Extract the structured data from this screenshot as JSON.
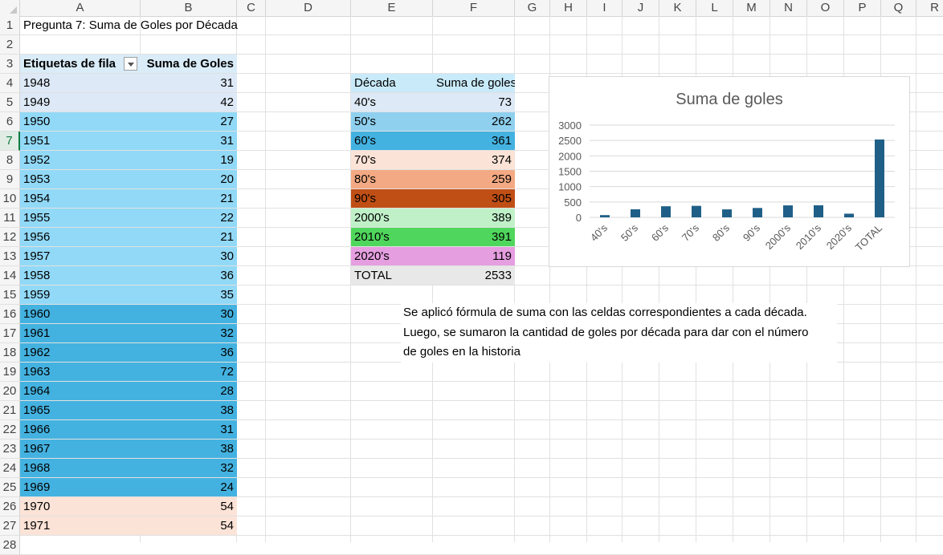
{
  "columns": [
    "A",
    "B",
    "C",
    "D",
    "E",
    "F",
    "G",
    "H",
    "I",
    "J",
    "K",
    "L",
    "M",
    "N",
    "O",
    "P",
    "Q",
    "R"
  ],
  "rows": [
    "1",
    "2",
    "3",
    "4",
    "5",
    "6",
    "7",
    "8",
    "9",
    "10",
    "11",
    "12",
    "13",
    "14",
    "15",
    "16",
    "17",
    "18",
    "19",
    "20",
    "21",
    "22",
    "23",
    "24",
    "25",
    "26",
    "27",
    "28"
  ],
  "selected_row": "7",
  "title": "Pregunta 7: Suma de Goles por Década",
  "pivot": {
    "header_label": "Etiquetas de fila",
    "header_value": "Suma de Goles",
    "rows": [
      {
        "year": "1948",
        "goals": "31",
        "color": "#dde9f6"
      },
      {
        "year": "1949",
        "goals": "42",
        "color": "#dde9f6"
      },
      {
        "year": "1950",
        "goals": "27",
        "color": "#92d9f7"
      },
      {
        "year": "1951",
        "goals": "31",
        "color": "#92d9f7"
      },
      {
        "year": "1952",
        "goals": "19",
        "color": "#92d9f7"
      },
      {
        "year": "1953",
        "goals": "20",
        "color": "#92d9f7"
      },
      {
        "year": "1954",
        "goals": "21",
        "color": "#92d9f7"
      },
      {
        "year": "1955",
        "goals": "22",
        "color": "#92d9f7"
      },
      {
        "year": "1956",
        "goals": "21",
        "color": "#92d9f7"
      },
      {
        "year": "1957",
        "goals": "30",
        "color": "#92d9f7"
      },
      {
        "year": "1958",
        "goals": "36",
        "color": "#92d9f7"
      },
      {
        "year": "1959",
        "goals": "35",
        "color": "#92d9f7"
      },
      {
        "year": "1960",
        "goals": "30",
        "color": "#44b2e0"
      },
      {
        "year": "1961",
        "goals": "32",
        "color": "#44b2e0"
      },
      {
        "year": "1962",
        "goals": "36",
        "color": "#44b2e0"
      },
      {
        "year": "1963",
        "goals": "72",
        "color": "#44b2e0"
      },
      {
        "year": "1964",
        "goals": "28",
        "color": "#44b2e0"
      },
      {
        "year": "1965",
        "goals": "38",
        "color": "#44b2e0"
      },
      {
        "year": "1966",
        "goals": "31",
        "color": "#44b2e0"
      },
      {
        "year": "1967",
        "goals": "38",
        "color": "#44b2e0"
      },
      {
        "year": "1968",
        "goals": "32",
        "color": "#44b2e0"
      },
      {
        "year": "1969",
        "goals": "24",
        "color": "#44b2e0"
      },
      {
        "year": "1970",
        "goals": "54",
        "color": "#fce3d7"
      },
      {
        "year": "1971",
        "goals": "54",
        "color": "#fce3d7"
      }
    ]
  },
  "summary": {
    "header_label": "Década",
    "header_value": "Suma de goles",
    "header_color": "#c9eaf9",
    "rows": [
      {
        "label": "40's",
        "value": "73",
        "color": "#dde9f6"
      },
      {
        "label": "50's",
        "value": "262",
        "color": "#8fd0ef"
      },
      {
        "label": "60's",
        "value": "361",
        "color": "#44b2e0"
      },
      {
        "label": "70's",
        "value": "374",
        "color": "#fce3d7"
      },
      {
        "label": "80's",
        "value": "259",
        "color": "#f3a983"
      },
      {
        "label": "90's",
        "value": "305",
        "color": "#c04f15"
      },
      {
        "label": "2000's",
        "value": "389",
        "color": "#c0f0c8"
      },
      {
        "label": "2010's",
        "value": "391",
        "color": "#4fd65c"
      },
      {
        "label": "2020's",
        "value": "119",
        "color": "#e59ee0"
      },
      {
        "label": "TOTAL",
        "value": "2533",
        "color": "#e8e8e8"
      }
    ]
  },
  "note_lines": [
    "Se aplicó fórmula de suma con las celdas correspondientes a cada década.",
    "Luego, se sumaron la cantidad de goles por década para dar con el número",
    "de goles en la historia"
  ],
  "chart_data": {
    "type": "bar",
    "title": "Suma de goles",
    "categories": [
      "40's",
      "50's",
      "60's",
      "70's",
      "80's",
      "90's",
      "2000's",
      "2010's",
      "2020's",
      "TOTAL"
    ],
    "values": [
      73,
      262,
      361,
      374,
      259,
      305,
      389,
      391,
      119,
      2533
    ],
    "ylim": [
      0,
      3000
    ],
    "yticks": [
      "0",
      "500",
      "1000",
      "1500",
      "2000",
      "2500",
      "3000"
    ],
    "bar_color": "#1f5f87",
    "grid": true,
    "legend": "none"
  }
}
